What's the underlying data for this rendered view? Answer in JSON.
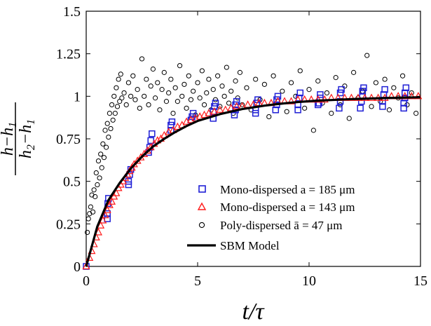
{
  "chart_data": {
    "type": "scatter",
    "title": "",
    "xlabel": "t/τ",
    "ylabel": "(h−h1)/(h2−h1)",
    "xlim": [
      0,
      15
    ],
    "ylim": [
      0,
      1.5
    ],
    "xticks": [
      {
        "value": 0,
        "label": "0"
      },
      {
        "value": 5,
        "label": "5"
      },
      {
        "value": 10,
        "label": "10"
      },
      {
        "value": 15,
        "label": "15"
      }
    ],
    "yticks": [
      {
        "value": 0,
        "label": "0"
      },
      {
        "value": 0.25,
        "label": "0.25"
      },
      {
        "value": 0.5,
        "label": "0.5"
      },
      {
        "value": 0.75,
        "label": "0.75"
      },
      {
        "value": 1,
        "label": "1"
      },
      {
        "value": 1.25,
        "label": "1.25"
      },
      {
        "value": 1.5,
        "label": "1.5"
      }
    ],
    "grid": false,
    "legend_position": "bottom-right",
    "legend": [
      {
        "series": "mono185",
        "label": "Mono-dispersed a = 185 μm"
      },
      {
        "series": "mono143",
        "label": "Mono-dispersed a = 143 μm"
      },
      {
        "series": "poly47",
        "label": "Poly-dispersed ā = 47 μm"
      },
      {
        "series": "model",
        "label": "SBM Model"
      }
    ],
    "colors": {
      "mono185": "#1f1fd6",
      "mono143": "#ff1a1a",
      "poly47": "#000000",
      "model": "#000000"
    },
    "series": {
      "mono185": {
        "name": "Mono-dispersed a = 185 μm",
        "marker": "square",
        "points": [
          [
            0,
            0
          ],
          [
            0.95,
            0.28
          ],
          [
            0.95,
            0.31
          ],
          [
            0.97,
            0.37
          ],
          [
            1.0,
            0.4
          ],
          [
            1.9,
            0.48
          ],
          [
            1.9,
            0.5
          ],
          [
            1.95,
            0.54
          ],
          [
            2.0,
            0.57
          ],
          [
            2.8,
            0.67
          ],
          [
            2.85,
            0.7
          ],
          [
            2.9,
            0.74
          ],
          [
            2.95,
            0.78
          ],
          [
            3.8,
            0.8
          ],
          [
            3.8,
            0.83
          ],
          [
            3.85,
            0.85
          ],
          [
            4.7,
            0.86
          ],
          [
            4.75,
            0.88
          ],
          [
            4.8,
            0.9
          ],
          [
            5.7,
            0.87
          ],
          [
            5.7,
            0.91
          ],
          [
            5.75,
            0.94
          ],
          [
            5.8,
            0.96
          ],
          [
            6.65,
            0.89
          ],
          [
            6.7,
            0.92
          ],
          [
            6.7,
            0.95
          ],
          [
            6.75,
            0.97
          ],
          [
            7.6,
            0.9
          ],
          [
            7.6,
            0.92
          ],
          [
            7.65,
            0.96
          ],
          [
            7.7,
            0.98
          ],
          [
            8.5,
            0.92
          ],
          [
            8.55,
            0.95
          ],
          [
            8.55,
            0.98
          ],
          [
            8.6,
            1.0
          ],
          [
            9.5,
            0.92
          ],
          [
            9.5,
            0.95
          ],
          [
            9.55,
            0.99
          ],
          [
            9.6,
            1.02
          ],
          [
            10.4,
            0.95
          ],
          [
            10.45,
            0.96
          ],
          [
            10.5,
            0.99
          ],
          [
            10.5,
            1.01
          ],
          [
            11.35,
            0.93
          ],
          [
            11.4,
            0.97
          ],
          [
            11.4,
            1.02
          ],
          [
            11.45,
            1.04
          ],
          [
            12.3,
            0.93
          ],
          [
            12.35,
            0.97
          ],
          [
            12.4,
            1.0
          ],
          [
            12.4,
            1.03
          ],
          [
            12.45,
            1.05
          ],
          [
            13.3,
            0.94
          ],
          [
            13.3,
            0.97
          ],
          [
            13.35,
            1.01
          ],
          [
            13.4,
            1.04
          ],
          [
            14.25,
            0.93
          ],
          [
            14.25,
            0.96
          ],
          [
            14.3,
            0.99
          ],
          [
            14.3,
            1.02
          ],
          [
            14.35,
            1.05
          ]
        ]
      },
      "mono143": {
        "name": "Mono-dispersed a = 143 μm",
        "marker": "triangle",
        "points": [
          [
            0,
            0
          ],
          [
            0.15,
            0.05
          ],
          [
            0.25,
            0.09
          ],
          [
            0.35,
            0.13
          ],
          [
            0.45,
            0.17
          ],
          [
            0.55,
            0.2
          ],
          [
            0.65,
            0.24
          ],
          [
            0.75,
            0.27
          ],
          [
            0.85,
            0.3
          ],
          [
            0.95,
            0.33
          ],
          [
            1.05,
            0.36
          ],
          [
            1.15,
            0.38
          ],
          [
            1.25,
            0.41
          ],
          [
            1.35,
            0.43
          ],
          [
            1.45,
            0.46
          ],
          [
            1.55,
            0.48
          ],
          [
            1.65,
            0.5
          ],
          [
            1.75,
            0.52
          ],
          [
            1.85,
            0.54
          ],
          [
            1.95,
            0.56
          ],
          [
            2.05,
            0.58
          ],
          [
            2.15,
            0.6
          ],
          [
            2.3,
            0.62
          ],
          [
            2.45,
            0.64
          ],
          [
            2.6,
            0.66
          ],
          [
            2.75,
            0.68
          ],
          [
            2.9,
            0.7
          ],
          [
            3.05,
            0.72
          ],
          [
            3.2,
            0.74
          ],
          [
            3.35,
            0.75
          ],
          [
            3.5,
            0.77
          ],
          [
            3.7,
            0.79
          ],
          [
            3.9,
            0.8
          ],
          [
            4.1,
            0.82
          ],
          [
            4.3,
            0.83
          ],
          [
            4.5,
            0.85
          ],
          [
            4.7,
            0.86
          ],
          [
            4.9,
            0.87
          ],
          [
            5.1,
            0.88
          ],
          [
            5.3,
            0.89
          ],
          [
            5.5,
            0.9
          ],
          [
            5.75,
            0.91
          ],
          [
            6.0,
            0.92
          ],
          [
            6.25,
            0.92
          ],
          [
            6.5,
            0.93
          ],
          [
            6.75,
            0.94
          ],
          [
            7.0,
            0.94
          ],
          [
            7.25,
            0.95
          ],
          [
            7.5,
            0.95
          ],
          [
            7.75,
            0.96
          ],
          [
            8.0,
            0.96
          ],
          [
            8.3,
            0.96
          ],
          [
            8.6,
            0.97
          ],
          [
            8.9,
            0.97
          ],
          [
            9.2,
            0.97
          ],
          [
            9.5,
            0.98
          ],
          [
            9.8,
            0.98
          ],
          [
            10.1,
            0.98
          ],
          [
            10.4,
            0.98
          ],
          [
            10.7,
            0.98
          ],
          [
            11.0,
            0.99
          ],
          [
            11.3,
            0.99
          ],
          [
            11.6,
            0.99
          ],
          [
            11.9,
            0.99
          ],
          [
            12.2,
            0.99
          ],
          [
            12.5,
            0.99
          ],
          [
            12.8,
            0.99
          ],
          [
            13.1,
            0.99
          ],
          [
            13.4,
            0.99
          ],
          [
            13.7,
            1.0
          ],
          [
            14.0,
            1.0
          ],
          [
            14.3,
            1.0
          ],
          [
            14.6,
            1.0
          ],
          [
            14.9,
            1.0
          ]
        ]
      },
      "poly47": {
        "name": "Poly-dispersed ā = 47 μm",
        "marker": "circle",
        "points": [
          [
            0.05,
            0.2
          ],
          [
            0.1,
            0.28
          ],
          [
            0.15,
            0.31
          ],
          [
            0.2,
            0.35
          ],
          [
            0.25,
            0.42
          ],
          [
            0.3,
            0.32
          ],
          [
            0.35,
            0.45
          ],
          [
            0.4,
            0.41
          ],
          [
            0.45,
            0.55
          ],
          [
            0.5,
            0.48
          ],
          [
            0.55,
            0.62
          ],
          [
            0.6,
            0.52
          ],
          [
            0.65,
            0.66
          ],
          [
            0.7,
            0.58
          ],
          [
            0.75,
            0.72
          ],
          [
            0.8,
            0.64
          ],
          [
            0.85,
            0.8
          ],
          [
            0.9,
            0.7
          ],
          [
            0.95,
            0.84
          ],
          [
            1.0,
            0.76
          ],
          [
            1.05,
            0.9
          ],
          [
            1.1,
            0.81
          ],
          [
            1.15,
            0.95
          ],
          [
            1.2,
            0.86
          ],
          [
            1.25,
            1.0
          ],
          [
            1.3,
            0.9
          ],
          [
            1.35,
            1.05
          ],
          [
            1.4,
            0.94
          ],
          [
            1.45,
            1.1
          ],
          [
            1.5,
            0.97
          ],
          [
            1.55,
            1.13
          ],
          [
            1.6,
            0.99
          ],
          [
            1.7,
            1.02
          ],
          [
            1.8,
            0.95
          ],
          [
            1.9,
            1.08
          ],
          [
            2.0,
            1.0
          ],
          [
            2.1,
            1.12
          ],
          [
            2.2,
            0.98
          ],
          [
            2.3,
            1.04
          ],
          [
            2.4,
            0.93
          ],
          [
            2.5,
            1.22
          ],
          [
            2.6,
            1.0
          ],
          [
            2.7,
            1.1
          ],
          [
            2.8,
            0.95
          ],
          [
            2.9,
            1.06
          ],
          [
            3.0,
            1.16
          ],
          [
            3.1,
            0.99
          ],
          [
            3.2,
            1.08
          ],
          [
            3.3,
            0.92
          ],
          [
            3.4,
            1.04
          ],
          [
            3.5,
            1.14
          ],
          [
            3.6,
            0.97
          ],
          [
            3.7,
            1.02
          ],
          [
            3.8,
            1.1
          ],
          [
            3.9,
            0.9
          ],
          [
            4.0,
            1.05
          ],
          [
            4.1,
            0.97
          ],
          [
            4.2,
            1.18
          ],
          [
            4.3,
            1.0
          ],
          [
            4.4,
            1.07
          ],
          [
            4.5,
            0.93
          ],
          [
            4.6,
            1.12
          ],
          [
            4.7,
            0.98
          ],
          [
            4.8,
            1.03
          ],
          [
            4.9,
            0.89
          ],
          [
            5.0,
            1.08
          ],
          [
            5.1,
            0.99
          ],
          [
            5.2,
            1.15
          ],
          [
            5.3,
            0.95
          ],
          [
            5.4,
            1.02
          ],
          [
            5.5,
            1.1
          ],
          [
            5.6,
            0.92
          ],
          [
            5.7,
            1.04
          ],
          [
            5.8,
            0.98
          ],
          [
            5.9,
            1.12
          ],
          [
            6.0,
            0.94
          ],
          [
            6.1,
            1.06
          ],
          [
            6.2,
            1.0
          ],
          [
            6.3,
            1.17
          ],
          [
            6.4,
            0.96
          ],
          [
            6.5,
            1.03
          ],
          [
            6.6,
            0.9
          ],
          [
            6.7,
            1.09
          ],
          [
            6.8,
            0.99
          ],
          [
            6.9,
            1.14
          ],
          [
            7.0,
            0.95
          ],
          [
            7.2,
            1.05
          ],
          [
            7.4,
            0.92
          ],
          [
            7.6,
            1.1
          ],
          [
            7.8,
            0.98
          ],
          [
            8.0,
            1.07
          ],
          [
            8.2,
            0.88
          ],
          [
            8.4,
            1.12
          ],
          [
            8.6,
            0.97
          ],
          [
            8.8,
            1.03
          ],
          [
            9.0,
            0.91
          ],
          [
            9.2,
            1.08
          ],
          [
            9.4,
            1.0
          ],
          [
            9.6,
            1.15
          ],
          [
            9.8,
            0.93
          ],
          [
            10.0,
            1.04
          ],
          [
            10.2,
            0.8
          ],
          [
            10.4,
            1.09
          ],
          [
            10.6,
            0.96
          ],
          [
            10.8,
            1.02
          ],
          [
            11.0,
            0.9
          ],
          [
            11.2,
            1.11
          ],
          [
            11.4,
            0.95
          ],
          [
            11.6,
            1.06
          ],
          [
            11.8,
            0.87
          ],
          [
            12.0,
            1.14
          ],
          [
            12.2,
            0.99
          ],
          [
            12.4,
            1.03
          ],
          [
            12.6,
            1.24
          ],
          [
            12.8,
            0.94
          ],
          [
            13.0,
            1.08
          ],
          [
            13.2,
            0.97
          ],
          [
            13.4,
            1.1
          ],
          [
            13.6,
            0.92
          ],
          [
            13.8,
            1.05
          ],
          [
            14.0,
            0.99
          ],
          [
            14.2,
            1.12
          ],
          [
            14.4,
            0.95
          ],
          [
            14.6,
            1.02
          ],
          [
            14.8,
            0.9
          ]
        ]
      },
      "model": {
        "name": "SBM Model",
        "type": "line",
        "x": [
          0,
          0.5,
          1,
          1.5,
          2,
          2.5,
          3,
          3.5,
          4,
          4.5,
          5,
          5.5,
          6,
          6.5,
          7,
          7.5,
          8,
          8.5,
          9,
          9.5,
          10,
          10.5,
          11,
          11.5,
          12,
          12.5,
          13,
          13.5,
          14,
          14.5,
          15
        ],
        "y": [
          0,
          0.235,
          0.39,
          0.49,
          0.575,
          0.645,
          0.705,
          0.75,
          0.79,
          0.825,
          0.855,
          0.875,
          0.895,
          0.91,
          0.925,
          0.935,
          0.945,
          0.953,
          0.96,
          0.966,
          0.971,
          0.975,
          0.978,
          0.981,
          0.984,
          0.986,
          0.988,
          0.99,
          0.991,
          0.993,
          0.994
        ]
      }
    }
  }
}
